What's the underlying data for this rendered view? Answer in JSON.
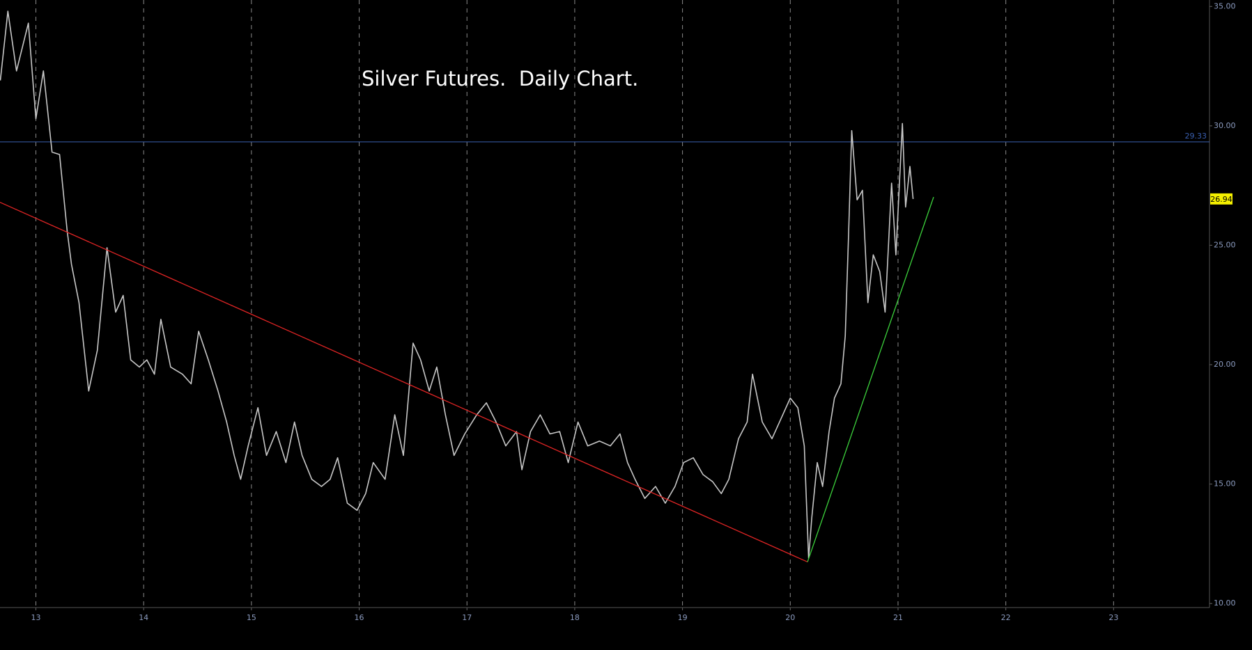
{
  "chart_data": {
    "type": "line",
    "title": "Silver Futures.  Daily Chart.",
    "background": "#000000",
    "grid": true,
    "xlim": [
      12.667,
      23.89
    ],
    "ylim": [
      9.83,
      35.27
    ],
    "xticks": [
      13,
      14,
      15,
      16,
      17,
      18,
      19,
      20,
      21,
      22,
      23
    ],
    "yticks": [
      {
        "value": 10,
        "label": "10.00"
      },
      {
        "value": 15,
        "label": "15.00"
      },
      {
        "value": 20,
        "label": "20.00"
      },
      {
        "value": 25,
        "label": "25.00"
      },
      {
        "value": 30,
        "label": "30.00"
      },
      {
        "value": 35,
        "label": "35.00"
      }
    ],
    "x": [
      12.67,
      12.74,
      12.82,
      12.93,
      13.0,
      13.07,
      13.15,
      13.22,
      13.29,
      13.33,
      13.4,
      13.49,
      13.57,
      13.66,
      13.74,
      13.81,
      13.88,
      13.96,
      14.03,
      14.1,
      14.16,
      14.25,
      14.36,
      14.44,
      14.51,
      14.6,
      14.69,
      14.77,
      14.84,
      14.9,
      14.97,
      15.06,
      15.14,
      15.23,
      15.32,
      15.4,
      15.47,
      15.56,
      15.65,
      15.73,
      15.8,
      15.89,
      15.98,
      16.06,
      16.13,
      16.24,
      16.33,
      16.41,
      16.5,
      16.57,
      16.65,
      16.72,
      16.8,
      16.88,
      16.98,
      17.09,
      17.18,
      17.27,
      17.36,
      17.46,
      17.51,
      17.59,
      17.68,
      17.77,
      17.86,
      17.94,
      18.03,
      18.12,
      18.23,
      18.33,
      18.42,
      18.49,
      18.56,
      18.65,
      18.75,
      18.84,
      18.93,
      19.01,
      19.1,
      19.19,
      19.28,
      19.36,
      19.43,
      19.52,
      19.6,
      19.65,
      19.74,
      19.83,
      19.93,
      20.0,
      20.07,
      20.13,
      20.17,
      20.2,
      20.25,
      20.3,
      20.36,
      20.41,
      20.47,
      20.51,
      20.54,
      20.57,
      20.62,
      20.67,
      20.72,
      20.77,
      20.83,
      20.88,
      20.94,
      20.98,
      21.04,
      21.07,
      21.11,
      21.14
    ],
    "series": [
      {
        "color": "#c8c8c8",
        "values": [
          31.9,
          34.8,
          32.3,
          34.3,
          30.3,
          32.3,
          28.9,
          28.8,
          25.6,
          24.2,
          22.6,
          18.9,
          20.6,
          24.9,
          22.2,
          22.9,
          20.2,
          19.9,
          20.2,
          19.6,
          21.9,
          19.9,
          19.6,
          19.2,
          21.4,
          20.2,
          18.9,
          17.6,
          16.2,
          15.2,
          16.6,
          18.2,
          16.2,
          17.2,
          15.9,
          17.6,
          16.2,
          15.2,
          14.9,
          15.2,
          16.1,
          14.2,
          13.9,
          14.6,
          15.9,
          15.2,
          17.9,
          16.2,
          20.9,
          20.2,
          18.9,
          19.9,
          17.9,
          16.2,
          17.1,
          17.9,
          18.4,
          17.6,
          16.6,
          17.2,
          15.6,
          17.2,
          17.9,
          17.1,
          17.2,
          15.9,
          17.6,
          16.6,
          16.8,
          16.6,
          17.1,
          15.9,
          15.2,
          14.4,
          14.9,
          14.2,
          14.9,
          15.9,
          16.1,
          15.4,
          15.1,
          14.6,
          15.2,
          16.9,
          17.6,
          19.6,
          17.6,
          16.9,
          17.9,
          18.6,
          18.2,
          16.6,
          11.9,
          13.6,
          15.9,
          14.9,
          17.2,
          18.6,
          19.2,
          21.2,
          25.3,
          29.8,
          26.9,
          27.3,
          22.6,
          24.6,
          23.9,
          22.2,
          27.6,
          24.6,
          30.1,
          26.6,
          28.3,
          26.94
        ]
      }
    ],
    "trendlines": [
      {
        "color": "#e02424",
        "x": [
          12.667,
          20.16
        ],
        "values": [
          26.8,
          11.74
        ]
      },
      {
        "color": "#3cd23c",
        "x": [
          20.16,
          21.33
        ],
        "values": [
          11.74,
          27.02
        ]
      }
    ],
    "hline": {
      "value": 29.33,
      "label": "29.33",
      "color": "#3a5fb0"
    },
    "last_price": {
      "value": 26.94,
      "label": "26.94",
      "color": "#f5f000"
    }
  }
}
